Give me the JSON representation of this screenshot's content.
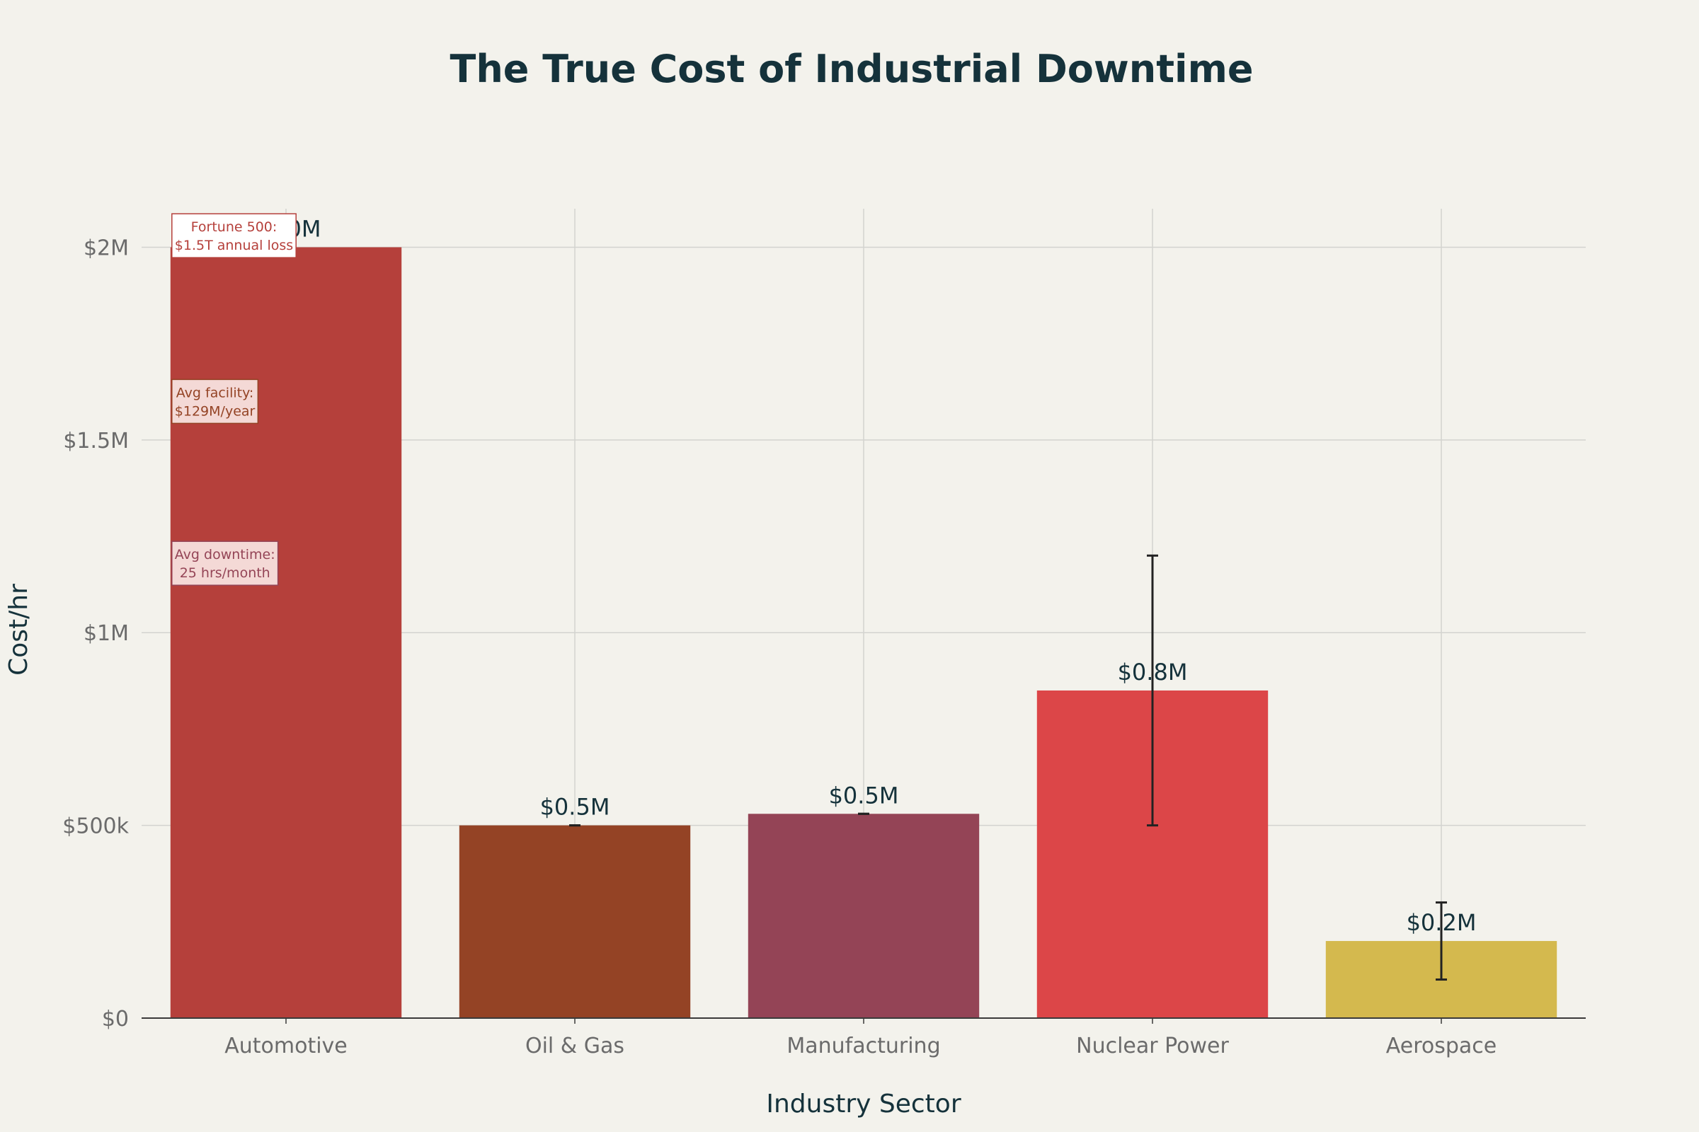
{
  "chart_data": {
    "type": "bar",
    "title": "The True Cost of Industrial Downtime",
    "xlabel": "Industry Sector",
    "ylabel": "Cost/hr",
    "categories": [
      "Automotive",
      "Oil & Gas",
      "Manufacturing",
      "Nuclear Power",
      "Aerospace"
    ],
    "values": [
      2000000,
      500000,
      530000,
      850000,
      200000
    ],
    "data_labels": [
      "$2.0M",
      "$0.5M",
      "$0.5M",
      "$0.8M",
      "$0.2M"
    ],
    "error_bars": [
      null,
      [
        500000,
        500000
      ],
      [
        530000,
        530000
      ],
      [
        500000,
        1200000
      ],
      [
        100000,
        300000
      ]
    ],
    "colors": [
      "#b5403b",
      "#944325",
      "#944456",
      "#dc4648",
      "#d4b94e"
    ],
    "ylim": [
      0,
      2100000
    ],
    "yticks": [
      0,
      500000,
      1000000,
      1500000,
      2000000
    ],
    "ytick_labels": [
      "$0",
      "$500k",
      "$1M",
      "$1.5M",
      "$2M"
    ],
    "grid": true,
    "annotations": [
      {
        "lines": [
          "Fortune 500:",
          "$1.5T annual loss"
        ],
        "y": 2030000,
        "border": "#b5403b",
        "fill": "#ffffff",
        "text_color": "#b5403b"
      },
      {
        "lines": [
          "Avg facility:",
          "$129M/year"
        ],
        "y": 1600000,
        "border": "#944325",
        "fill": "#f4d9d6",
        "text_color": "#944325"
      },
      {
        "lines": [
          "Avg downtime:",
          "25 hrs/month"
        ],
        "y": 1180000,
        "border": "#944456",
        "fill": "#f4d9d6",
        "text_color": "#944456"
      }
    ]
  },
  "colors": {
    "background": "#f3f2ec",
    "grid": "#d3d3cf",
    "axis": "#3a3a3a",
    "error_bar": "#222222"
  }
}
